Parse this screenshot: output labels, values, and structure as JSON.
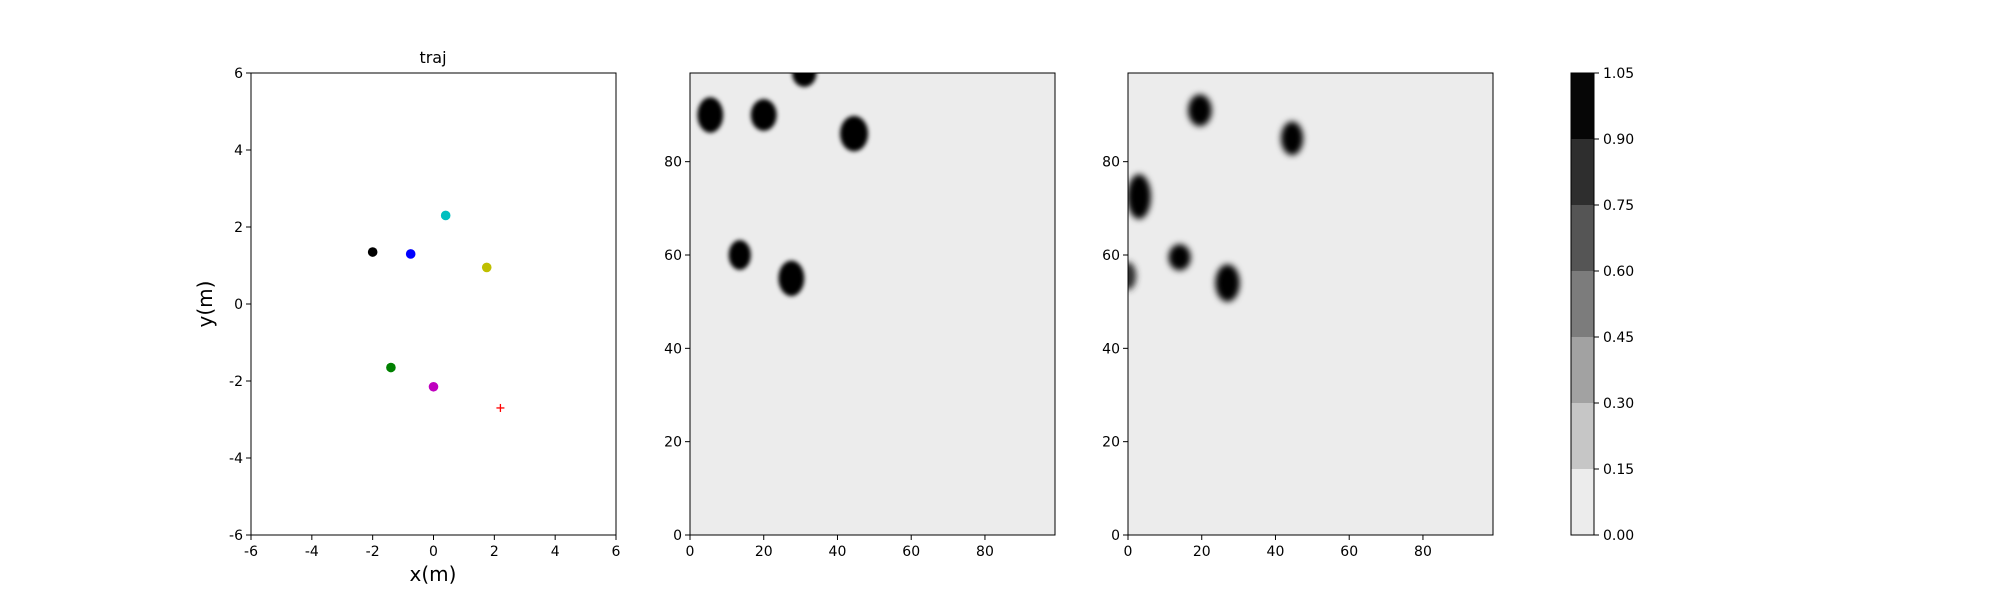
{
  "chart_data": [
    {
      "type": "scatter",
      "title": "traj",
      "xlabel": "x(m)",
      "ylabel": "y(m)",
      "xlim": [
        -6,
        6
      ],
      "ylim": [
        -6,
        6
      ],
      "xticks": [
        -6,
        -4,
        -2,
        0,
        2,
        4,
        6
      ],
      "yticks": [
        -6,
        -4,
        -2,
        0,
        2,
        4,
        6
      ],
      "grid": false,
      "points": [
        {
          "x": -2.0,
          "y": 1.35,
          "color": "#000000",
          "marker": "circle"
        },
        {
          "x": -0.75,
          "y": 1.3,
          "color": "#0000ff",
          "marker": "circle"
        },
        {
          "x": 0.4,
          "y": 2.3,
          "color": "#00bfbf",
          "marker": "circle"
        },
        {
          "x": 1.75,
          "y": 0.95,
          "color": "#bfbf00",
          "marker": "circle"
        },
        {
          "x": -1.4,
          "y": -1.65,
          "color": "#008000",
          "marker": "circle"
        },
        {
          "x": 0.0,
          "y": -2.15,
          "color": "#bf00bf",
          "marker": "circle"
        },
        {
          "x": 2.2,
          "y": -2.7,
          "color": "#ff0000",
          "marker": "plus"
        }
      ]
    },
    {
      "type": "heatmap",
      "title": "",
      "xlim": [
        0,
        99
      ],
      "ylim": [
        0,
        99
      ],
      "xticks": [
        0,
        20,
        40,
        60,
        80
      ],
      "yticks": [
        0,
        20,
        40,
        60,
        80
      ],
      "background_value": 0.07,
      "blobs": [
        {
          "x": 5.5,
          "y": 90,
          "rx": 3.5,
          "ry": 3.8,
          "value": 1.0
        },
        {
          "x": 20,
          "y": 90,
          "rx": 3.5,
          "ry": 3.4,
          "value": 1.0
        },
        {
          "x": 31,
          "y": 99,
          "rx": 3.3,
          "ry": 3.0,
          "value": 1.0
        },
        {
          "x": 44.5,
          "y": 86,
          "rx": 3.8,
          "ry": 3.8,
          "value": 1.0
        },
        {
          "x": 13.5,
          "y": 60,
          "rx": 3.0,
          "ry": 3.2,
          "value": 1.0
        },
        {
          "x": 27.5,
          "y": 55,
          "rx": 3.5,
          "ry": 3.8,
          "value": 1.0
        }
      ]
    },
    {
      "type": "heatmap",
      "title": "",
      "xlim": [
        0,
        99
      ],
      "ylim": [
        0,
        99
      ],
      "xticks": [
        0,
        20,
        40,
        60,
        80
      ],
      "yticks": [
        0,
        20,
        40,
        60,
        80
      ],
      "background_value": 0.07,
      "blobs": [
        {
          "x": 19.5,
          "y": 91,
          "rx": 3.2,
          "ry": 3.4,
          "value": 1.0
        },
        {
          "x": 44.5,
          "y": 85,
          "rx": 3.0,
          "ry": 3.6,
          "value": 1.0
        },
        {
          "x": 3,
          "y": 72.5,
          "rx": 3.2,
          "ry": 4.8,
          "value": 0.95
        },
        {
          "x": 0,
          "y": 55.5,
          "rx": 2.2,
          "ry": 3.0,
          "value": 0.9
        },
        {
          "x": 14,
          "y": 59.5,
          "rx": 3.0,
          "ry": 2.8,
          "value": 1.0
        },
        {
          "x": 27,
          "y": 54,
          "rx": 3.3,
          "ry": 4.0,
          "value": 1.0
        }
      ]
    },
    {
      "type": "colorbar",
      "levels": [
        0.0,
        0.15,
        0.3,
        0.45,
        0.6,
        0.75,
        0.9,
        1.05
      ],
      "tick_labels": [
        "0.00",
        "0.15",
        "0.30",
        "0.45",
        "0.60",
        "0.75",
        "0.90",
        "1.05"
      ],
      "colors": [
        "#ececec",
        "#c6c6c6",
        "#a2a2a2",
        "#7c7c7c",
        "#555555",
        "#2e2e2e",
        "#060606"
      ]
    }
  ]
}
